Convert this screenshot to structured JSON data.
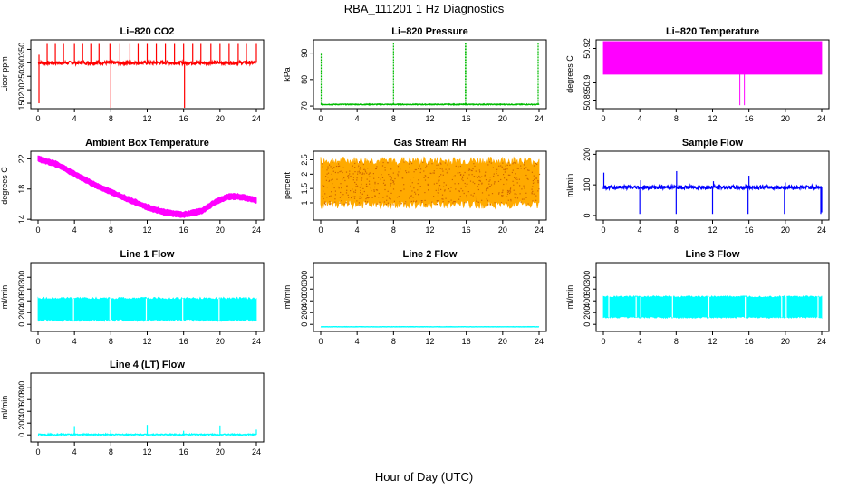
{
  "title": "RBA_111201  1 Hz Diagnostics",
  "x_title": "Hour of Day (UTC)",
  "chart_data": [
    {
      "type": "line",
      "title": "Li–820 CO2",
      "ylabel": "Licor ppm",
      "color": "#ff0000",
      "xlim": [
        0,
        24
      ],
      "ylim": [
        130,
        385
      ],
      "yticks": [
        150,
        200,
        250,
        300,
        350
      ],
      "xticks": [
        0,
        4,
        8,
        12,
        16,
        20,
        24
      ],
      "series": [
        {
          "base": 300,
          "noise": 6,
          "spikes": [
            [
              0.1,
              150
            ],
            [
              0.1,
              330
            ],
            [
              1,
              370
            ],
            [
              1.9,
              370
            ],
            [
              2.8,
              370
            ],
            [
              4,
              370
            ],
            [
              4.9,
              370
            ],
            [
              5.8,
              370
            ],
            [
              6.7,
              370
            ],
            [
              7.9,
              370
            ],
            [
              8,
              125
            ],
            [
              9,
              370
            ],
            [
              10.1,
              370
            ],
            [
              11,
              370
            ],
            [
              12,
              370
            ],
            [
              13,
              370
            ],
            [
              14,
              370
            ],
            [
              15,
              370
            ],
            [
              16,
              370
            ],
            [
              16.1,
              120
            ],
            [
              17,
              370
            ],
            [
              17.9,
              370
            ],
            [
              19,
              370
            ],
            [
              20,
              370
            ],
            [
              21,
              370
            ],
            [
              22,
              370
            ],
            [
              22.9,
              370
            ],
            [
              24,
              370
            ]
          ]
        }
      ]
    },
    {
      "type": "line",
      "title": "Li–820 Pressure",
      "ylabel": "kPa",
      "color": "#00bb00",
      "xlim": [
        0,
        24
      ],
      "ylim": [
        69,
        95
      ],
      "yticks": [
        70,
        80,
        90
      ],
      "xticks": [
        0,
        4,
        8,
        12,
        16,
        20,
        24
      ],
      "series": [
        {
          "base": 70.6,
          "noise": 0.15,
          "spikes": [
            [
              0.05,
              90
            ],
            [
              8,
              94
            ],
            [
              15.9,
              94
            ],
            [
              16.05,
              94
            ],
            [
              23.9,
              94
            ]
          ]
        }
      ]
    },
    {
      "type": "area",
      "title": "Li–820 Temperature",
      "ylabel": "degrees C",
      "color": "#ff00ff",
      "xlim": [
        0,
        24
      ],
      "ylim": [
        50.885,
        50.925
      ],
      "yticks": [
        50.89,
        50.9,
        50.92
      ],
      "xticks": [
        0,
        4,
        8,
        12,
        16,
        20,
        24
      ],
      "series": [
        {
          "low": 50.905,
          "high": 50.924,
          "dips": [
            [
              15,
              50.887
            ],
            [
              15.5,
              50.887
            ]
          ]
        }
      ]
    },
    {
      "type": "area",
      "title": "Ambient Box Temperature",
      "ylabel": "degrees C",
      "color": "#ff00ff",
      "xlim": [
        0,
        24
      ],
      "ylim": [
        13.9,
        23
      ],
      "yticks": [
        14,
        18,
        22
      ],
      "xticks": [
        0,
        4,
        8,
        12,
        16,
        20,
        24
      ],
      "series": [
        {
          "curve": [
            [
              0,
              22
            ],
            [
              2,
              21.3
            ],
            [
              4,
              20
            ],
            [
              6,
              18.7
            ],
            [
              8,
              17.6
            ],
            [
              10,
              16.6
            ],
            [
              12,
              15.6
            ],
            [
              14,
              14.9
            ],
            [
              16,
              14.6
            ],
            [
              18,
              15.1
            ],
            [
              19,
              15.9
            ],
            [
              20,
              16.6
            ],
            [
              21,
              17
            ],
            [
              22,
              17
            ],
            [
              23,
              16.8
            ],
            [
              24,
              16.5
            ]
          ],
          "band": 0.35
        }
      ]
    },
    {
      "type": "area",
      "title": "Gas Stream RH",
      "ylabel": "percent",
      "color": "#ffaa00",
      "xlim": [
        0,
        24
      ],
      "ylim": [
        0.4,
        2.8
      ],
      "yticks": [
        1,
        1.5,
        2,
        2.5
      ],
      "xticks": [
        0,
        4,
        8,
        12,
        16,
        20,
        24
      ],
      "series": [
        {
          "low": 0.95,
          "high": 2.45,
          "noise": 0.15
        }
      ]
    },
    {
      "type": "line",
      "title": "Sample Flow",
      "ylabel": "ml/min",
      "color": "#0000ff",
      "xlim": [
        0,
        24
      ],
      "ylim": [
        -15,
        210
      ],
      "yticks": [
        0,
        100,
        200
      ],
      "xticks": [
        0,
        4,
        8,
        12,
        16,
        20,
        24
      ],
      "series": [
        {
          "base": 92,
          "noise": 6,
          "spikes": [
            [
              0.05,
              140
            ],
            [
              4,
              5
            ],
            [
              4.1,
              115
            ],
            [
              8,
              5
            ],
            [
              8.05,
              145
            ],
            [
              12,
              5
            ],
            [
              12.1,
              112
            ],
            [
              15.9,
              5
            ],
            [
              16,
              130
            ],
            [
              19.9,
              5
            ],
            [
              20,
              108
            ],
            [
              23.9,
              5
            ],
            [
              24,
              10
            ]
          ]
        }
      ]
    },
    {
      "type": "area",
      "title": "Line 1 Flow",
      "ylabel": "ml/min",
      "color": "#00ffff",
      "xlim": [
        0,
        24
      ],
      "ylim": [
        -120,
        1050
      ],
      "yticks": [
        0,
        200,
        400,
        600,
        800
      ],
      "xticks": [
        0,
        4,
        8,
        12,
        16,
        20,
        24
      ],
      "series": [
        {
          "low": 70,
          "high": 440,
          "noise": 20,
          "gaps": [
            3.9,
            7.9,
            11.9,
            15.9,
            19.9
          ]
        }
      ]
    },
    {
      "type": "line",
      "title": "Line 2 Flow",
      "ylabel": "ml/min",
      "color": "#00ffff",
      "xlim": [
        0,
        24
      ],
      "ylim": [
        -120,
        1050
      ],
      "yticks": [
        0,
        200,
        400,
        600,
        800
      ],
      "xticks": [
        0,
        4,
        8,
        12,
        16,
        20,
        24
      ],
      "series": [
        {
          "base": -40,
          "noise": 2,
          "spikes": []
        }
      ]
    },
    {
      "type": "area",
      "title": "Line 3 Flow",
      "ylabel": "ml/min",
      "color": "#00ffff",
      "xlim": [
        0,
        24
      ],
      "ylim": [
        -120,
        1050
      ],
      "yticks": [
        0,
        200,
        400,
        600,
        800
      ],
      "xticks": [
        0,
        4,
        8,
        12,
        16,
        20,
        24
      ],
      "series": [
        {
          "low": 120,
          "high": 470,
          "noise": 15,
          "gaps": [
            0.6,
            3.6,
            4.1,
            7.6,
            11.6,
            15.6,
            19.6,
            20.1,
            23.6
          ]
        }
      ]
    },
    {
      "type": "line",
      "title": "Line 4 (LT) Flow",
      "ylabel": "ml/min",
      "color": "#00ffff",
      "xlim": [
        0,
        24
      ],
      "ylim": [
        -120,
        1050
      ],
      "yticks": [
        0,
        200,
        400,
        600,
        800
      ],
      "xticks": [
        0,
        4,
        8,
        12,
        16,
        20,
        24
      ],
      "series": [
        {
          "base": 5,
          "noise": 10,
          "spikes": [
            [
              4,
              150
            ],
            [
              8,
              80
            ],
            [
              12,
              170
            ],
            [
              16,
              70
            ],
            [
              20,
              160
            ],
            [
              24,
              90
            ]
          ]
        }
      ]
    }
  ]
}
